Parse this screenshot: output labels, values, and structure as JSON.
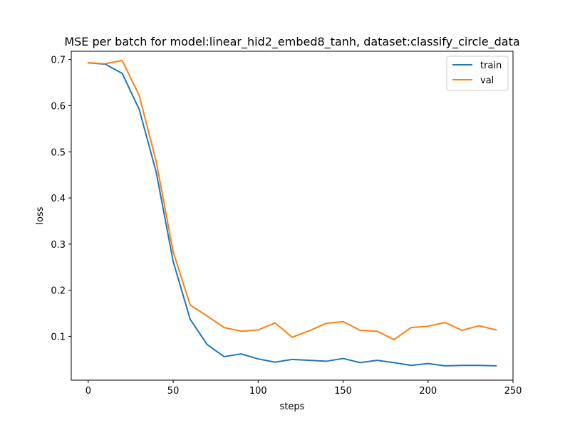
{
  "chart_data": {
    "type": "line",
    "title": "MSE per batch for model:linear_hid2_embed8_tanh, dataset:classify_circle_data",
    "xlabel": "steps",
    "ylabel": "loss",
    "xlim": [
      -10,
      250
    ],
    "ylim": [
      0.005,
      0.718
    ],
    "xticks": [
      0,
      50,
      100,
      150,
      200,
      250
    ],
    "xtick_labels": [
      "0",
      "50",
      "100",
      "150",
      "200",
      "250"
    ],
    "yticks": [
      0.1,
      0.2,
      0.3,
      0.4,
      0.5,
      0.6,
      0.7
    ],
    "ytick_labels": [
      "0.1",
      "0.2",
      "0.3",
      "0.4",
      "0.5",
      "0.6",
      "0.7"
    ],
    "grid": false,
    "legend_position": "top-right",
    "x": [
      0,
      10,
      20,
      30,
      40,
      50,
      60,
      70,
      80,
      90,
      100,
      110,
      120,
      130,
      140,
      150,
      160,
      170,
      180,
      190,
      200,
      210,
      220,
      230,
      240
    ],
    "series": [
      {
        "name": "train",
        "color": "#1f77b4",
        "values": [
          0.693,
          0.69,
          0.67,
          0.592,
          0.456,
          0.262,
          0.137,
          0.082,
          0.056,
          0.062,
          0.051,
          0.044,
          0.05,
          0.048,
          0.046,
          0.052,
          0.043,
          0.048,
          0.043,
          0.037,
          0.041,
          0.036,
          0.037,
          0.037,
          0.036
        ]
      },
      {
        "name": "val",
        "color": "#ff7f0e",
        "values": [
          0.693,
          0.691,
          0.698,
          0.622,
          0.479,
          0.283,
          0.168,
          0.144,
          0.119,
          0.111,
          0.114,
          0.129,
          0.098,
          0.112,
          0.128,
          0.132,
          0.113,
          0.111,
          0.093,
          0.119,
          0.122,
          0.13,
          0.113,
          0.123,
          0.114
        ]
      }
    ]
  }
}
